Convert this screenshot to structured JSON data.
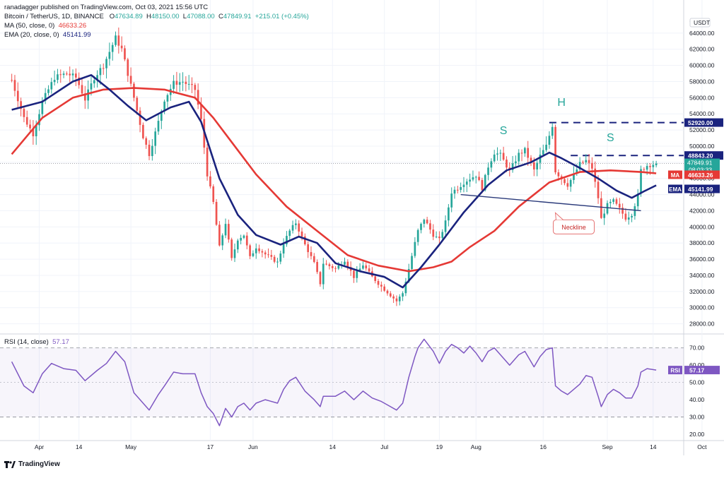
{
  "header": {
    "published": "ranadagger published on TradingView.com, Oct 03, 2021 15:56 UTC",
    "symbol_line": "Bitcoin / TetherUS, 1D, BINANCE",
    "open_label": "O",
    "open": "47634.89",
    "high_label": "H",
    "high": "48150.00",
    "low_label": "L",
    "low": "47088.00",
    "close_label": "C",
    "close": "47849.91",
    "change": "+215.01 (+0.45%)",
    "ma_line": "MA (50, close, 0)",
    "ma_value": "46633.26",
    "ema_line": "EMA (20, close, 0)",
    "ema_value": "45141.99",
    "rsi_line": "RSI (14, close)",
    "rsi_value": "57.17"
  },
  "footer": {
    "brand": "TradingView"
  },
  "colors": {
    "up": "#26a69a",
    "down": "#ef5350",
    "ma": "#e53935",
    "ema": "#1a237e",
    "rsi": "#7e57c2",
    "annot": "#26a69a",
    "dash": "#1a237e"
  },
  "chart_data": [
    {
      "type": "candlestick",
      "title": "Bitcoin / TetherUS, 1D, BINANCE",
      "currency": "USDT",
      "ylim": [
        27000,
        66000
      ],
      "y_ticks": [
        28000,
        30000,
        32000,
        34000,
        36000,
        38000,
        40000,
        42000,
        44000,
        46000,
        48000,
        50000,
        52000,
        54000,
        56000,
        58000,
        60000,
        62000,
        64000
      ],
      "x_labels": [
        "Apr",
        "14",
        "May",
        "17",
        "Jun",
        "14",
        "Jul",
        "19",
        "Aug",
        "16",
        "Sep",
        "14",
        "Oct"
      ],
      "x_label_days": [
        9,
        22,
        39,
        65,
        79,
        105,
        122,
        140,
        152,
        174,
        195,
        210,
        226
      ],
      "date_range": [
        "2021-03-23",
        "2021-10-03"
      ],
      "price_path": [
        [
          0,
          58200
        ],
        [
          4,
          53500
        ],
        [
          7,
          51500
        ],
        [
          10,
          55500
        ],
        [
          14,
          58500
        ],
        [
          18,
          59000
        ],
        [
          21,
          58500
        ],
        [
          24,
          55800
        ],
        [
          27,
          58500
        ],
        [
          30,
          60000
        ],
        [
          34,
          63400
        ],
        [
          36,
          62000
        ],
        [
          40,
          56000
        ],
        [
          43,
          51200
        ],
        [
          45,
          49000
        ],
        [
          48,
          53000
        ],
        [
          50,
          55800
        ],
        [
          53,
          57800
        ],
        [
          56,
          58000
        ],
        [
          60,
          57000
        ],
        [
          62,
          53200
        ],
        [
          64,
          46500
        ],
        [
          66,
          43000
        ],
        [
          68,
          37500
        ],
        [
          70,
          40500
        ],
        [
          72,
          36000
        ],
        [
          74,
          38500
        ],
        [
          76,
          39000
        ],
        [
          78,
          36200
        ],
        [
          80,
          37500
        ],
        [
          83,
          36600
        ],
        [
          87,
          35600
        ],
        [
          89,
          38000
        ],
        [
          91,
          39500
        ],
        [
          93,
          40500
        ],
        [
          96,
          37800
        ],
        [
          99,
          35500
        ],
        [
          101,
          33000
        ],
        [
          102,
          35500
        ],
        [
          106,
          34800
        ],
        [
          109,
          35900
        ],
        [
          112,
          33800
        ],
        [
          115,
          35300
        ],
        [
          118,
          33800
        ],
        [
          121,
          32600
        ],
        [
          123,
          31900
        ],
        [
          126,
          30800
        ],
        [
          128,
          31800
        ],
        [
          130,
          34800
        ],
        [
          132,
          38000
        ],
        [
          133,
          39500
        ],
        [
          135,
          41000
        ],
        [
          138,
          39000
        ],
        [
          140,
          38400
        ],
        [
          142,
          40600
        ],
        [
          144,
          44300
        ],
        [
          146,
          44800
        ],
        [
          148,
          45500
        ],
        [
          150,
          46000
        ],
        [
          152,
          46400
        ],
        [
          154,
          44800
        ],
        [
          156,
          47500
        ],
        [
          158,
          49200
        ],
        [
          160,
          48900
        ],
        [
          163,
          46900
        ],
        [
          166,
          49000
        ],
        [
          168,
          49500
        ],
        [
          171,
          47000
        ],
        [
          173,
          48800
        ],
        [
          175,
          50000
        ],
        [
          177,
          52600
        ],
        [
          178,
          46900
        ],
        [
          180,
          46000
        ],
        [
          182,
          45200
        ],
        [
          184,
          46400
        ],
        [
          186,
          47800
        ],
        [
          188,
          48200
        ],
        [
          190,
          47300
        ],
        [
          192,
          43600
        ],
        [
          193,
          41000
        ],
        [
          195,
          42700
        ],
        [
          197,
          43200
        ],
        [
          199,
          42200
        ],
        [
          201,
          41100
        ],
        [
          203,
          41600
        ],
        [
          205,
          43900
        ],
        [
          206,
          47000
        ],
        [
          208,
          47600
        ],
        [
          211,
          47850
        ]
      ],
      "ma50_path": [
        [
          0,
          49000
        ],
        [
          10,
          53500
        ],
        [
          20,
          56000
        ],
        [
          30,
          57000
        ],
        [
          40,
          57200
        ],
        [
          50,
          57000
        ],
        [
          60,
          56000
        ],
        [
          66,
          53500
        ],
        [
          72,
          50500
        ],
        [
          80,
          46500
        ],
        [
          90,
          42500
        ],
        [
          100,
          39500
        ],
        [
          110,
          36500
        ],
        [
          120,
          35200
        ],
        [
          130,
          34500
        ],
        [
          138,
          35000
        ],
        [
          144,
          35700
        ],
        [
          150,
          37500
        ],
        [
          158,
          39500
        ],
        [
          166,
          42500
        ],
        [
          176,
          45500
        ],
        [
          186,
          46800
        ],
        [
          196,
          47000
        ],
        [
          206,
          46800
        ],
        [
          211,
          46633
        ]
      ],
      "ema20_path": [
        [
          0,
          54500
        ],
        [
          10,
          55500
        ],
        [
          20,
          58000
        ],
        [
          26,
          58800
        ],
        [
          32,
          57000
        ],
        [
          38,
          55000
        ],
        [
          44,
          53200
        ],
        [
          52,
          54800
        ],
        [
          58,
          55500
        ],
        [
          62,
          53000
        ],
        [
          68,
          46000
        ],
        [
          74,
          41500
        ],
        [
          80,
          39000
        ],
        [
          88,
          37800
        ],
        [
          94,
          38800
        ],
        [
          100,
          38000
        ],
        [
          106,
          35500
        ],
        [
          114,
          34500
        ],
        [
          122,
          33800
        ],
        [
          128,
          32500
        ],
        [
          134,
          35000
        ],
        [
          140,
          37800
        ],
        [
          148,
          41800
        ],
        [
          156,
          45200
        ],
        [
          162,
          47000
        ],
        [
          170,
          48000
        ],
        [
          176,
          49200
        ],
        [
          180,
          48500
        ],
        [
          186,
          47300
        ],
        [
          192,
          46000
        ],
        [
          198,
          44500
        ],
        [
          203,
          43600
        ],
        [
          207,
          44400
        ],
        [
          211,
          45142
        ]
      ],
      "horizontal_levels": [
        {
          "value": 52920,
          "label": "52920.00",
          "from_day": 176,
          "style": "dashed"
        },
        {
          "value": 48843.2,
          "label": "48843.20",
          "from_day": 183,
          "style": "dashed"
        }
      ],
      "current_price": {
        "value": 47849.91,
        "label": "47849.91",
        "countdown": "08:03:33"
      },
      "ma_tag": {
        "name": "MA",
        "value": "46633.26"
      },
      "ema_tag": {
        "name": "EMA",
        "value": "45141.99"
      },
      "neckline": {
        "start": [
          147,
          44000
        ],
        "end": [
          206,
          42000
        ],
        "label": "Neckline",
        "label_anchor": [
          184,
          40000
        ]
      },
      "annotations": [
        {
          "text": "S",
          "day": 161,
          "value": 51500
        },
        {
          "text": "H",
          "day": 180,
          "value": 55000
        },
        {
          "text": "S",
          "day": 196,
          "value": 50600
        }
      ]
    },
    {
      "type": "line",
      "title": "RSI (14, close)",
      "ylim": [
        18,
        76
      ],
      "y_ticks": [
        20,
        30,
        40,
        50,
        60,
        70
      ],
      "bands": [
        30,
        70
      ],
      "midline": 50,
      "current": {
        "value": 57.17,
        "label": "57.17",
        "tag": "RSI"
      },
      "rsi_path": [
        [
          0,
          62
        ],
        [
          4,
          48
        ],
        [
          7,
          44
        ],
        [
          10,
          55
        ],
        [
          13,
          61
        ],
        [
          17,
          58
        ],
        [
          21,
          57
        ],
        [
          24,
          51
        ],
        [
          28,
          57
        ],
        [
          31,
          61
        ],
        [
          34,
          68
        ],
        [
          37,
          62
        ],
        [
          40,
          44
        ],
        [
          43,
          38
        ],
        [
          45,
          34
        ],
        [
          48,
          43
        ],
        [
          50,
          48
        ],
        [
          53,
          56
        ],
        [
          56,
          55
        ],
        [
          60,
          55
        ],
        [
          62,
          44
        ],
        [
          64,
          36
        ],
        [
          66,
          32
        ],
        [
          68,
          25
        ],
        [
          70,
          35
        ],
        [
          72,
          30
        ],
        [
          74,
          36
        ],
        [
          76,
          38
        ],
        [
          78,
          34
        ],
        [
          80,
          38
        ],
        [
          83,
          40
        ],
        [
          87,
          38
        ],
        [
          89,
          46
        ],
        [
          91,
          51
        ],
        [
          93,
          53
        ],
        [
          96,
          45
        ],
        [
          99,
          40
        ],
        [
          101,
          36
        ],
        [
          102,
          42
        ],
        [
          106,
          42
        ],
        [
          109,
          45
        ],
        [
          112,
          40
        ],
        [
          115,
          45
        ],
        [
          118,
          41
        ],
        [
          121,
          39
        ],
        [
          123,
          37
        ],
        [
          126,
          34
        ],
        [
          128,
          38
        ],
        [
          130,
          53
        ],
        [
          132,
          65
        ],
        [
          133,
          70
        ],
        [
          135,
          75
        ],
        [
          138,
          68
        ],
        [
          140,
          61
        ],
        [
          142,
          68
        ],
        [
          144,
          72
        ],
        [
          146,
          70
        ],
        [
          148,
          67
        ],
        [
          150,
          71
        ],
        [
          152,
          67
        ],
        [
          154,
          62
        ],
        [
          156,
          68
        ],
        [
          158,
          70
        ],
        [
          160,
          66
        ],
        [
          163,
          60
        ],
        [
          166,
          66
        ],
        [
          168,
          68
        ],
        [
          171,
          59
        ],
        [
          173,
          65
        ],
        [
          175,
          69
        ],
        [
          177,
          70
        ],
        [
          178,
          48
        ],
        [
          180,
          45
        ],
        [
          182,
          43
        ],
        [
          184,
          46
        ],
        [
          186,
          49
        ],
        [
          188,
          54
        ],
        [
          190,
          53
        ],
        [
          192,
          42
        ],
        [
          193,
          36
        ],
        [
          195,
          43
        ],
        [
          197,
          46
        ],
        [
          199,
          44
        ],
        [
          201,
          41
        ],
        [
          203,
          41
        ],
        [
          205,
          48
        ],
        [
          206,
          56
        ],
        [
          208,
          58
        ],
        [
          211,
          57.17
        ]
      ]
    }
  ]
}
